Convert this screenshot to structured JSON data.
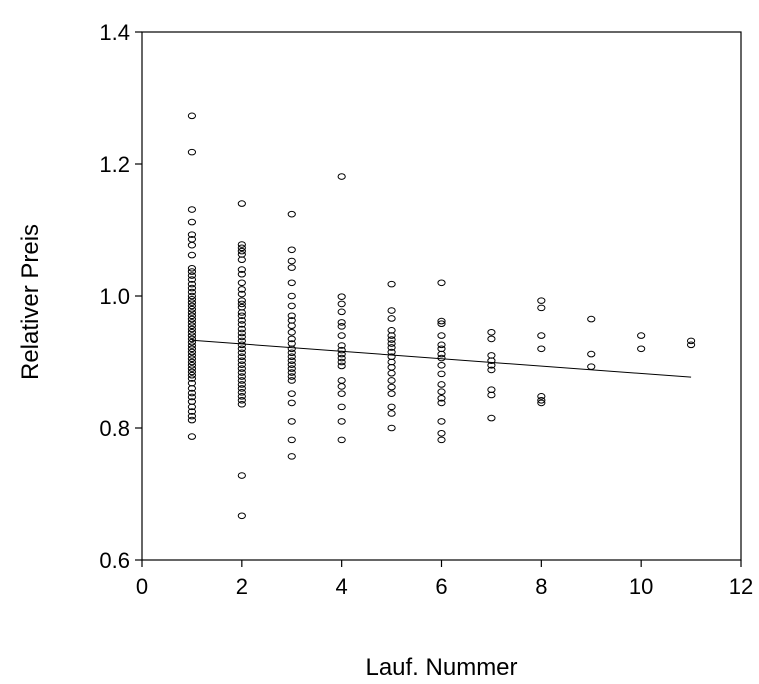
{
  "chart_data": {
    "type": "scatter",
    "title": "",
    "xlabel": "Lauf. Nummer",
    "ylabel": "Relativer Preis",
    "xlim": [
      0,
      12
    ],
    "ylim": [
      0.6,
      1.4
    ],
    "xticks": [
      0,
      2,
      4,
      6,
      8,
      10,
      12
    ],
    "yticks": [
      0.6,
      0.8,
      1.0,
      1.2,
      1.4
    ],
    "xtick_labels": [
      "0",
      "2",
      "4",
      "6",
      "8",
      "10",
      "12"
    ],
    "ytick_labels": [
      "0.6",
      "0.8",
      "1.0",
      "1.2",
      "1.4"
    ],
    "grid": false,
    "legend": "none",
    "marker": "open-circle",
    "series": [
      {
        "points": [
          [
            1,
            1.273
          ],
          [
            1,
            1.218
          ],
          [
            1,
            1.131
          ],
          [
            1,
            1.112
          ],
          [
            1,
            1.093
          ],
          [
            1,
            1.086
          ],
          [
            1,
            1.077
          ],
          [
            1,
            1.062
          ],
          [
            1,
            1.042
          ],
          [
            1,
            1.037
          ],
          [
            1,
            1.031
          ],
          [
            1,
            1.025
          ],
          [
            1,
            1.018
          ],
          [
            1,
            1.012
          ],
          [
            1,
            1.006
          ],
          [
            1,
            1.0
          ],
          [
            1,
            0.995
          ],
          [
            1,
            0.99
          ],
          [
            1,
            0.985
          ],
          [
            1,
            0.98
          ],
          [
            1,
            0.975
          ],
          [
            1,
            0.97
          ],
          [
            1,
            0.965
          ],
          [
            1,
            0.96
          ],
          [
            1,
            0.955
          ],
          [
            1,
            0.95
          ],
          [
            1,
            0.945
          ],
          [
            1,
            0.94
          ],
          [
            1,
            0.935
          ],
          [
            1,
            0.93
          ],
          [
            1,
            0.925
          ],
          [
            1,
            0.92
          ],
          [
            1,
            0.915
          ],
          [
            1,
            0.91
          ],
          [
            1,
            0.905
          ],
          [
            1,
            0.9
          ],
          [
            1,
            0.895
          ],
          [
            1,
            0.89
          ],
          [
            1,
            0.885
          ],
          [
            1,
            0.88
          ],
          [
            1,
            0.875
          ],
          [
            1,
            0.868
          ],
          [
            1,
            0.86
          ],
          [
            1,
            0.853
          ],
          [
            1,
            0.847
          ],
          [
            1,
            0.84
          ],
          [
            1,
            0.832
          ],
          [
            1,
            0.825
          ],
          [
            1,
            0.818
          ],
          [
            1,
            0.812
          ],
          [
            1,
            0.787
          ],
          [
            2,
            1.14
          ],
          [
            2,
            1.078
          ],
          [
            2,
            1.073
          ],
          [
            2,
            1.068
          ],
          [
            2,
            1.063
          ],
          [
            2,
            1.055
          ],
          [
            2,
            1.04
          ],
          [
            2,
            1.033
          ],
          [
            2,
            1.02
          ],
          [
            2,
            1.01
          ],
          [
            2,
            1.003
          ],
          [
            2,
            0.993
          ],
          [
            2,
            0.988
          ],
          [
            2,
            0.983
          ],
          [
            2,
            0.975
          ],
          [
            2,
            0.97
          ],
          [
            2,
            0.963
          ],
          [
            2,
            0.957
          ],
          [
            2,
            0.95
          ],
          [
            2,
            0.944
          ],
          [
            2,
            0.938
          ],
          [
            2,
            0.932
          ],
          [
            2,
            0.926
          ],
          [
            2,
            0.92
          ],
          [
            2,
            0.914
          ],
          [
            2,
            0.908
          ],
          [
            2,
            0.902
          ],
          [
            2,
            0.896
          ],
          [
            2,
            0.89
          ],
          [
            2,
            0.884
          ],
          [
            2,
            0.878
          ],
          [
            2,
            0.872
          ],
          [
            2,
            0.866
          ],
          [
            2,
            0.86
          ],
          [
            2,
            0.854
          ],
          [
            2,
            0.848
          ],
          [
            2,
            0.842
          ],
          [
            2,
            0.836
          ],
          [
            2,
            0.728
          ],
          [
            2,
            0.667
          ],
          [
            3,
            1.124
          ],
          [
            3,
            1.07
          ],
          [
            3,
            1.053
          ],
          [
            3,
            1.043
          ],
          [
            3,
            1.02
          ],
          [
            3,
            1.0
          ],
          [
            3,
            0.985
          ],
          [
            3,
            0.97
          ],
          [
            3,
            0.963
          ],
          [
            3,
            0.955
          ],
          [
            3,
            0.945
          ],
          [
            3,
            0.935
          ],
          [
            3,
            0.928
          ],
          [
            3,
            0.92
          ],
          [
            3,
            0.914
          ],
          [
            3,
            0.908
          ],
          [
            3,
            0.902
          ],
          [
            3,
            0.896
          ],
          [
            3,
            0.89
          ],
          [
            3,
            0.884
          ],
          [
            3,
            0.878
          ],
          [
            3,
            0.872
          ],
          [
            3,
            0.852
          ],
          [
            3,
            0.838
          ],
          [
            3,
            0.81
          ],
          [
            3,
            0.782
          ],
          [
            3,
            0.757
          ],
          [
            4,
            1.181
          ],
          [
            4,
            0.999
          ],
          [
            4,
            0.988
          ],
          [
            4,
            0.976
          ],
          [
            4,
            0.96
          ],
          [
            4,
            0.954
          ],
          [
            4,
            0.94
          ],
          [
            4,
            0.925
          ],
          [
            4,
            0.918
          ],
          [
            4,
            0.912
          ],
          [
            4,
            0.906
          ],
          [
            4,
            0.9
          ],
          [
            4,
            0.894
          ],
          [
            4,
            0.872
          ],
          [
            4,
            0.863
          ],
          [
            4,
            0.852
          ],
          [
            4,
            0.832
          ],
          [
            4,
            0.81
          ],
          [
            4,
            0.782
          ],
          [
            5,
            1.018
          ],
          [
            5,
            0.978
          ],
          [
            5,
            0.966
          ],
          [
            5,
            0.948
          ],
          [
            5,
            0.94
          ],
          [
            5,
            0.934
          ],
          [
            5,
            0.928
          ],
          [
            5,
            0.922
          ],
          [
            5,
            0.915
          ],
          [
            5,
            0.908
          ],
          [
            5,
            0.9
          ],
          [
            5,
            0.892
          ],
          [
            5,
            0.883
          ],
          [
            5,
            0.872
          ],
          [
            5,
            0.862
          ],
          [
            5,
            0.852
          ],
          [
            5,
            0.832
          ],
          [
            5,
            0.822
          ],
          [
            5,
            0.8
          ],
          [
            6,
            1.02
          ],
          [
            6,
            0.962
          ],
          [
            6,
            0.958
          ],
          [
            6,
            0.94
          ],
          [
            6,
            0.926
          ],
          [
            6,
            0.92
          ],
          [
            6,
            0.912
          ],
          [
            6,
            0.906
          ],
          [
            6,
            0.895
          ],
          [
            6,
            0.882
          ],
          [
            6,
            0.866
          ],
          [
            6,
            0.855
          ],
          [
            6,
            0.845
          ],
          [
            6,
            0.838
          ],
          [
            6,
            0.81
          ],
          [
            6,
            0.792
          ],
          [
            6,
            0.782
          ],
          [
            7,
            0.945
          ],
          [
            7,
            0.935
          ],
          [
            7,
            0.91
          ],
          [
            7,
            0.902
          ],
          [
            7,
            0.895
          ],
          [
            7,
            0.888
          ],
          [
            7,
            0.858
          ],
          [
            7,
            0.85
          ],
          [
            7,
            0.815
          ],
          [
            8,
            0.993
          ],
          [
            8,
            0.982
          ],
          [
            8,
            0.94
          ],
          [
            8,
            0.92
          ],
          [
            8,
            0.848
          ],
          [
            8,
            0.842
          ],
          [
            8,
            0.838
          ],
          [
            9,
            0.965
          ],
          [
            9,
            0.912
          ],
          [
            9,
            0.893
          ],
          [
            10,
            0.94
          ],
          [
            10,
            0.92
          ],
          [
            11,
            0.932
          ],
          [
            11,
            0.926
          ]
        ]
      },
      {
        "type": "line",
        "x": [
          1,
          11
        ],
        "y": [
          0.933,
          0.877
        ]
      }
    ]
  }
}
